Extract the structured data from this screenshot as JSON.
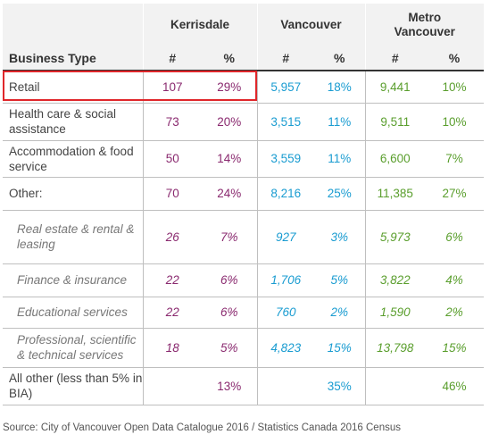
{
  "header": {
    "locations": [
      "Kerrisdale",
      "Vancouver",
      "Metro Vancouver"
    ],
    "row_label": "Business Type",
    "count_label": "#",
    "pct_label": "%"
  },
  "rows": [
    {
      "label": "Retail",
      "k_n": "107",
      "k_p": "29%",
      "v_n": "5,957",
      "v_p": "18%",
      "m_n": "9,441",
      "m_p": "10%"
    },
    {
      "label": "Health care & social assistance",
      "k_n": "73",
      "k_p": "20%",
      "v_n": "3,515",
      "v_p": "11%",
      "m_n": "9,511",
      "m_p": "10%"
    },
    {
      "label": "Accommodation & food service",
      "k_n": "50",
      "k_p": "14%",
      "v_n": "3,559",
      "v_p": "11%",
      "m_n": "6,600",
      "m_p": "7%"
    },
    {
      "label": "Other:",
      "k_n": "70",
      "k_p": "24%",
      "v_n": "8,216",
      "v_p": "25%",
      "m_n": "11,385",
      "m_p": "27%"
    },
    {
      "label": "Real estate & rental & leasing",
      "k_n": "26",
      "k_p": "7%",
      "v_n": "927",
      "v_p": "3%",
      "m_n": "5,973",
      "m_p": "6%"
    },
    {
      "label": "Finance & insurance",
      "k_n": "22",
      "k_p": "6%",
      "v_n": "1,706",
      "v_p": "5%",
      "m_n": "3,822",
      "m_p": "4%"
    },
    {
      "label": "Educational services",
      "k_n": "22",
      "k_p": "6%",
      "v_n": "760",
      "v_p": "2%",
      "m_n": "1,590",
      "m_p": "2%"
    },
    {
      "label": "Professional, scientific & technical services",
      "k_n": "18",
      "k_p": "5%",
      "v_n": "4,823",
      "v_p": "15%",
      "m_n": "13,798",
      "m_p": "15%"
    },
    {
      "label": "All other (less than 5% in BIA)",
      "k_n": "",
      "k_p": "13%",
      "v_n": "",
      "v_p": "35%",
      "m_n": "",
      "m_p": "46%"
    }
  ],
  "source": "Source: City of Vancouver Open Data Catalogue 2016 / Statistics Canada 2016 Census",
  "colors": {
    "kerrisdale": "#8a2a6f",
    "vancouver": "#1a9cd1",
    "metro": "#5a9e2d",
    "highlight": "#e0262a"
  }
}
